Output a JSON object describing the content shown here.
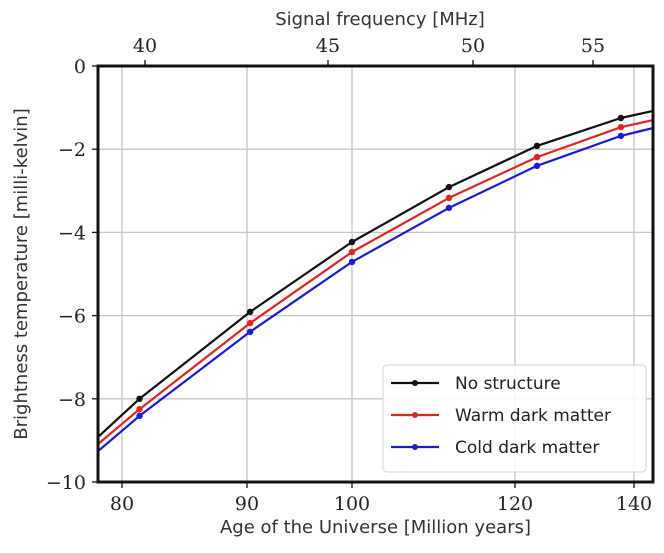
{
  "chart_data": {
    "type": "line",
    "title": "",
    "xlabel": "Age of the Universe [Million years]",
    "x2label": "Signal frequency [MHz]",
    "ylabel": "Brightness temperature [milli-kelvin]",
    "xlim": [
      78.1,
      143.2
    ],
    "ylim": [
      -10,
      0
    ],
    "grid": true,
    "legend_position": "bottom-right",
    "x_ticks": [
      80,
      90,
      100,
      120,
      140
    ],
    "x_tick_labels": [
      "80",
      "90",
      "100",
      "120",
      "140"
    ],
    "x2_ticks": [
      40,
      45,
      50,
      55
    ],
    "x2_tick_labels": [
      "40",
      "45",
      "50",
      "55"
    ],
    "y_ticks": [
      0,
      -2,
      -4,
      -6,
      -8,
      -10
    ],
    "y_tick_labels": [
      "0",
      "−2",
      "−4",
      "−6",
      "−8",
      "−10"
    ],
    "x": [
      78.1,
      81.4,
      90.3,
      100,
      111.9,
      123.7,
      137.8,
      143.2
    ],
    "marker_indices": [
      1,
      2,
      3,
      4,
      5,
      6
    ],
    "series": [
      {
        "name": "No structure",
        "color": "#111111",
        "values": [
          -8.92,
          -8.0,
          -5.91,
          -4.23,
          -2.91,
          -1.92,
          -1.25,
          -1.08
        ]
      },
      {
        "name": "Warm dark matter",
        "color": "#e8231f",
        "values": [
          -9.09,
          -8.25,
          -6.18,
          -4.47,
          -3.17,
          -2.19,
          -1.47,
          -1.3
        ]
      },
      {
        "name": "Cold dark matter",
        "color": "#1a1adc",
        "values": [
          -9.26,
          -8.41,
          -6.39,
          -4.71,
          -3.41,
          -2.4,
          -1.68,
          -1.49
        ]
      }
    ]
  }
}
